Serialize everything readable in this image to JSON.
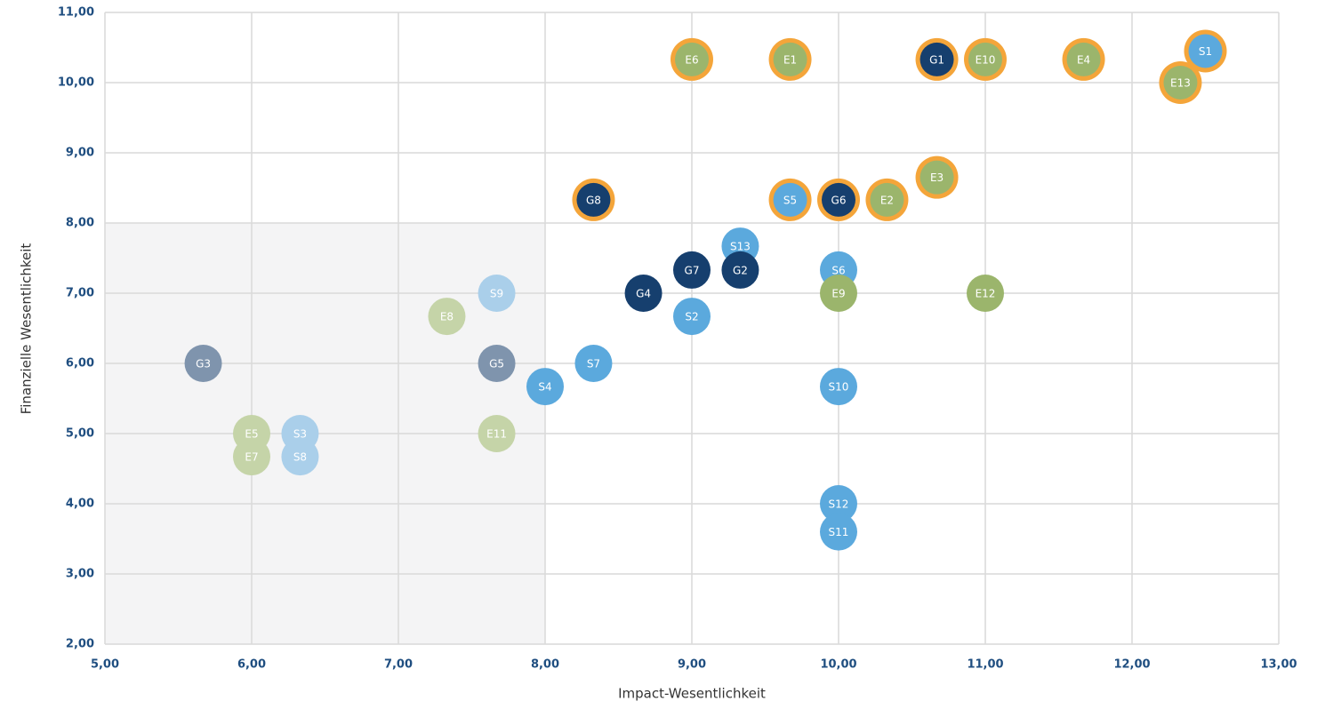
{
  "chart_data": {
    "type": "scatter",
    "xlabel": "Impact-Wesentlichkeit",
    "ylabel": "Finanzielle Wesentlichkeit",
    "xlim": [
      5,
      13
    ],
    "ylim": [
      2,
      11
    ],
    "xticks": [
      {
        "value": 5,
        "label": "5,00"
      },
      {
        "value": 6,
        "label": "6,00"
      },
      {
        "value": 7,
        "label": "7,00"
      },
      {
        "value": 8,
        "label": "8,00"
      },
      {
        "value": 9,
        "label": "9,00"
      },
      {
        "value": 10,
        "label": "10,00"
      },
      {
        "value": 11,
        "label": "11,00"
      },
      {
        "value": 12,
        "label": "12,00"
      },
      {
        "value": 13,
        "label": "13,00"
      }
    ],
    "yticks": [
      {
        "value": 2,
        "label": "2,00"
      },
      {
        "value": 3,
        "label": "3,00"
      },
      {
        "value": 4,
        "label": "4,00"
      },
      {
        "value": 5,
        "label": "5,00"
      },
      {
        "value": 6,
        "label": "6,00"
      },
      {
        "value": 7,
        "label": "7,00"
      },
      {
        "value": 8,
        "label": "8,00"
      },
      {
        "value": 9,
        "label": "9,00"
      },
      {
        "value": 10,
        "label": "10,00"
      },
      {
        "value": 11,
        "label": "11,00"
      }
    ],
    "grid": true,
    "shaded_region": {
      "xlim": [
        5,
        8
      ],
      "ylim": [
        2,
        8
      ],
      "color": "#f4f4f5"
    },
    "ring_color": "#f4a53a",
    "labels": [
      "E6",
      "E1",
      "G1",
      "E10",
      "E4",
      "S1",
      "E13",
      "E3",
      "G8",
      "S5",
      "G6",
      "E2",
      "S13",
      "G7",
      "G2",
      "G4",
      "S6",
      "E9",
      "E12",
      "S9",
      "E8",
      "S2",
      "G3",
      "G5",
      "S7",
      "S4",
      "S10",
      "E5",
      "S3",
      "E11",
      "E7",
      "S8",
      "S12",
      "S11"
    ],
    "x": [
      9,
      9.67,
      10.67,
      11,
      11.67,
      12.5,
      12.33,
      10.67,
      8.33,
      9.67,
      10,
      10.33,
      9.33,
      9,
      9.33,
      8.67,
      10,
      10,
      11,
      7.67,
      7.33,
      9,
      5.67,
      7.67,
      8.33,
      8,
      10,
      6,
      6.33,
      7.67,
      6,
      6.33,
      10,
      10
    ],
    "y": [
      10.33,
      10.33,
      10.33,
      10.33,
      10.33,
      10.45,
      10,
      8.65,
      8.33,
      8.33,
      8.33,
      8.33,
      7.67,
      7.33,
      7.33,
      7,
      7.33,
      7,
      7,
      7,
      6.67,
      6.67,
      6,
      6,
      6,
      5.67,
      5.67,
      5,
      5,
      5,
      4.67,
      4.67,
      4,
      3.6
    ],
    "colors": [
      "#9bb56c",
      "#9bb56c",
      "#163f6e",
      "#9bb56c",
      "#9bb56c",
      "#5ba9dd",
      "#9bb56c",
      "#9bb56c",
      "#163f6e",
      "#5ba9dd",
      "#163f6e",
      "#9bb56c",
      "#5ba9dd",
      "#163f6e",
      "#163f6e",
      "#163f6e",
      "#5ba9dd",
      "#9bb56c",
      "#9bb56c",
      "#aacfea",
      "#c5d4a8",
      "#5ba9dd",
      "#7f94ad",
      "#7f94ad",
      "#5ba9dd",
      "#5ba9dd",
      "#5ba9dd",
      "#c5d4a8",
      "#aacfea",
      "#c5d4a8",
      "#c5d4a8",
      "#aacfea",
      "#5ba9dd",
      "#5ba9dd"
    ],
    "ringed": [
      true,
      true,
      true,
      true,
      true,
      true,
      true,
      true,
      true,
      true,
      true,
      true,
      false,
      false,
      false,
      false,
      false,
      false,
      false,
      false,
      false,
      false,
      false,
      false,
      false,
      false,
      false,
      false,
      false,
      false,
      false,
      false,
      false,
      false
    ]
  }
}
